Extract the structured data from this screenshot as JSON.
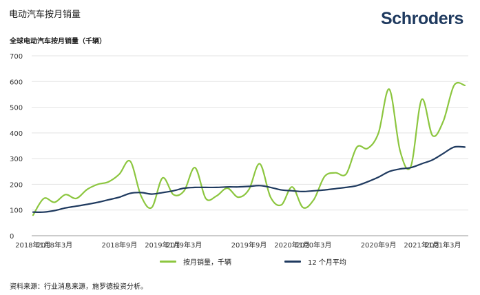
{
  "header": {
    "title": "电动汽车按月销量",
    "brand": "Schroders"
  },
  "footer": {
    "source": "资料来源：行业消息来源，施罗德投资分析。"
  },
  "colors": {
    "monthly": "#8cc63f",
    "average": "#1f3a5f",
    "gridline": "#e3e3e3",
    "brand": "#1f3a5f"
  },
  "chart_data": {
    "type": "line",
    "title": "全球电动汽车按月销量（千辆）",
    "xlabel": "",
    "ylabel": "",
    "ylim": [
      0,
      700
    ],
    "yticks": [
      0,
      100,
      200,
      300,
      400,
      500,
      600,
      700
    ],
    "grid": true,
    "legend_position": "bottom",
    "x": [
      "2018-01",
      "2018-02",
      "2018-03",
      "2018-04",
      "2018-05",
      "2018-06",
      "2018-07",
      "2018-08",
      "2018-09",
      "2018-10",
      "2018-11",
      "2018-12",
      "2019-01",
      "2019-02",
      "2019-03",
      "2019-04",
      "2019-05",
      "2019-06",
      "2019-07",
      "2019-08",
      "2019-09",
      "2019-10",
      "2019-11",
      "2019-12",
      "2020-01",
      "2020-02",
      "2020-03",
      "2020-04",
      "2020-05",
      "2020-06",
      "2020-07",
      "2020-08",
      "2020-09",
      "2020-10",
      "2020-11",
      "2020-12",
      "2021-01",
      "2021-02",
      "2021-03",
      "2021-04",
      "2021-05"
    ],
    "tick_labels": [
      {
        "label": "2018年1月",
        "index": 0
      },
      {
        "label": "2018年3月",
        "index": 2
      },
      {
        "label": "2018年9月",
        "index": 8
      },
      {
        "label": "2019年1月",
        "index": 12
      },
      {
        "label": "2019年3月",
        "index": 14
      },
      {
        "label": "2019年9月",
        "index": 20
      },
      {
        "label": "2020年1月",
        "index": 24
      },
      {
        "label": "2020年3月",
        "index": 26
      },
      {
        "label": "2020年9月",
        "index": 32
      },
      {
        "label": "2021年1月",
        "index": 36
      },
      {
        "label": "2021年3月",
        "index": 38
      }
    ],
    "series": [
      {
        "name": "按月销量，千辆",
        "values": [
          80,
          145,
          130,
          160,
          145,
          180,
          200,
          210,
          240,
          290,
          155,
          110,
          225,
          160,
          175,
          265,
          145,
          155,
          185,
          150,
          180,
          280,
          150,
          120,
          190,
          110,
          140,
          230,
          245,
          240,
          345,
          340,
          400,
          570,
          330,
          270,
          530,
          390,
          445,
          585,
          585
        ],
        "note_x_offset_months": 0
      },
      {
        "name": "12 个月平均",
        "values": [
          92,
          92,
          98,
          108,
          115,
          122,
          130,
          140,
          150,
          165,
          168,
          162,
          168,
          175,
          185,
          188,
          188,
          188,
          190,
          190,
          192,
          195,
          188,
          178,
          175,
          172,
          175,
          178,
          183,
          188,
          195,
          210,
          228,
          250,
          260,
          265,
          280,
          295,
          320,
          345,
          345
        ]
      }
    ]
  }
}
